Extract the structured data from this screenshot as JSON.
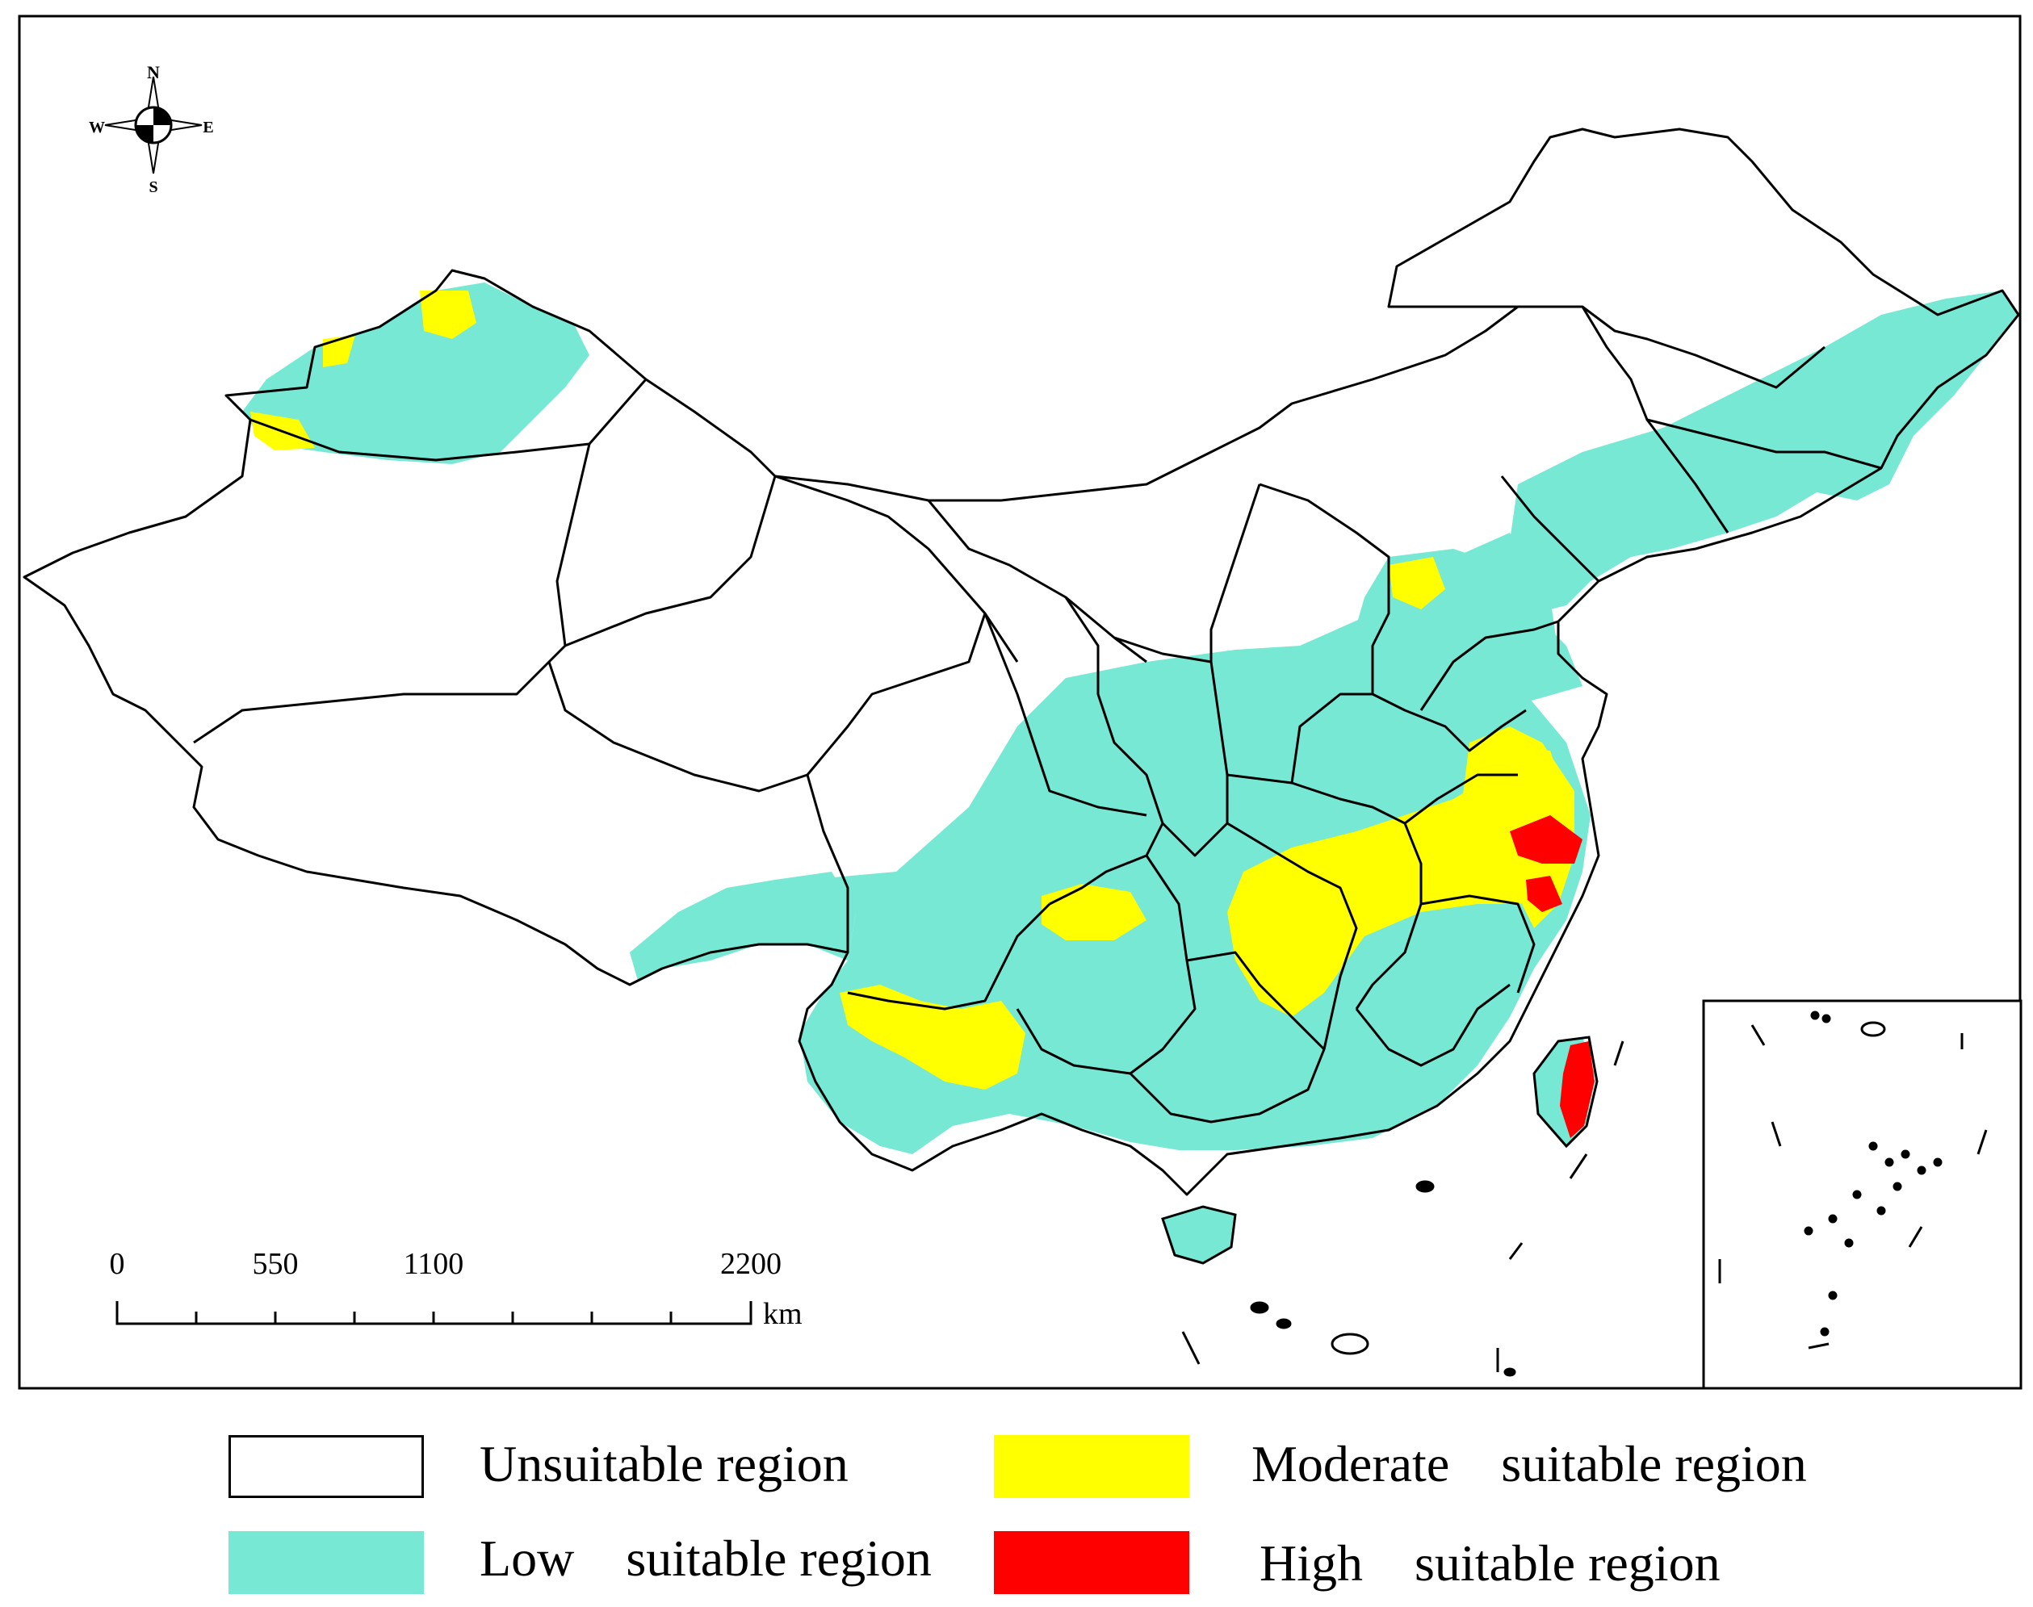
{
  "compass": {
    "n": "N",
    "s": "S",
    "e": "E",
    "w": "W"
  },
  "scale_bar": {
    "ticks": [
      "0",
      "550",
      "1100",
      "2200"
    ],
    "unit": "km"
  },
  "legend": [
    {
      "label": "Unsuitable region",
      "color": "#ffffff"
    },
    {
      "label": "Low    suitable region",
      "color": "#76e8d4"
    },
    {
      "label": "Moderate    suitable region",
      "color": "#ffff00"
    },
    {
      "label": "High    suitable region",
      "color": "#ff0000"
    }
  ],
  "colors": {
    "unsuitable": "#ffffff",
    "low": "#76e8d4",
    "moderate": "#ffff00",
    "high": "#ff0000",
    "boundary": "#000000"
  }
}
